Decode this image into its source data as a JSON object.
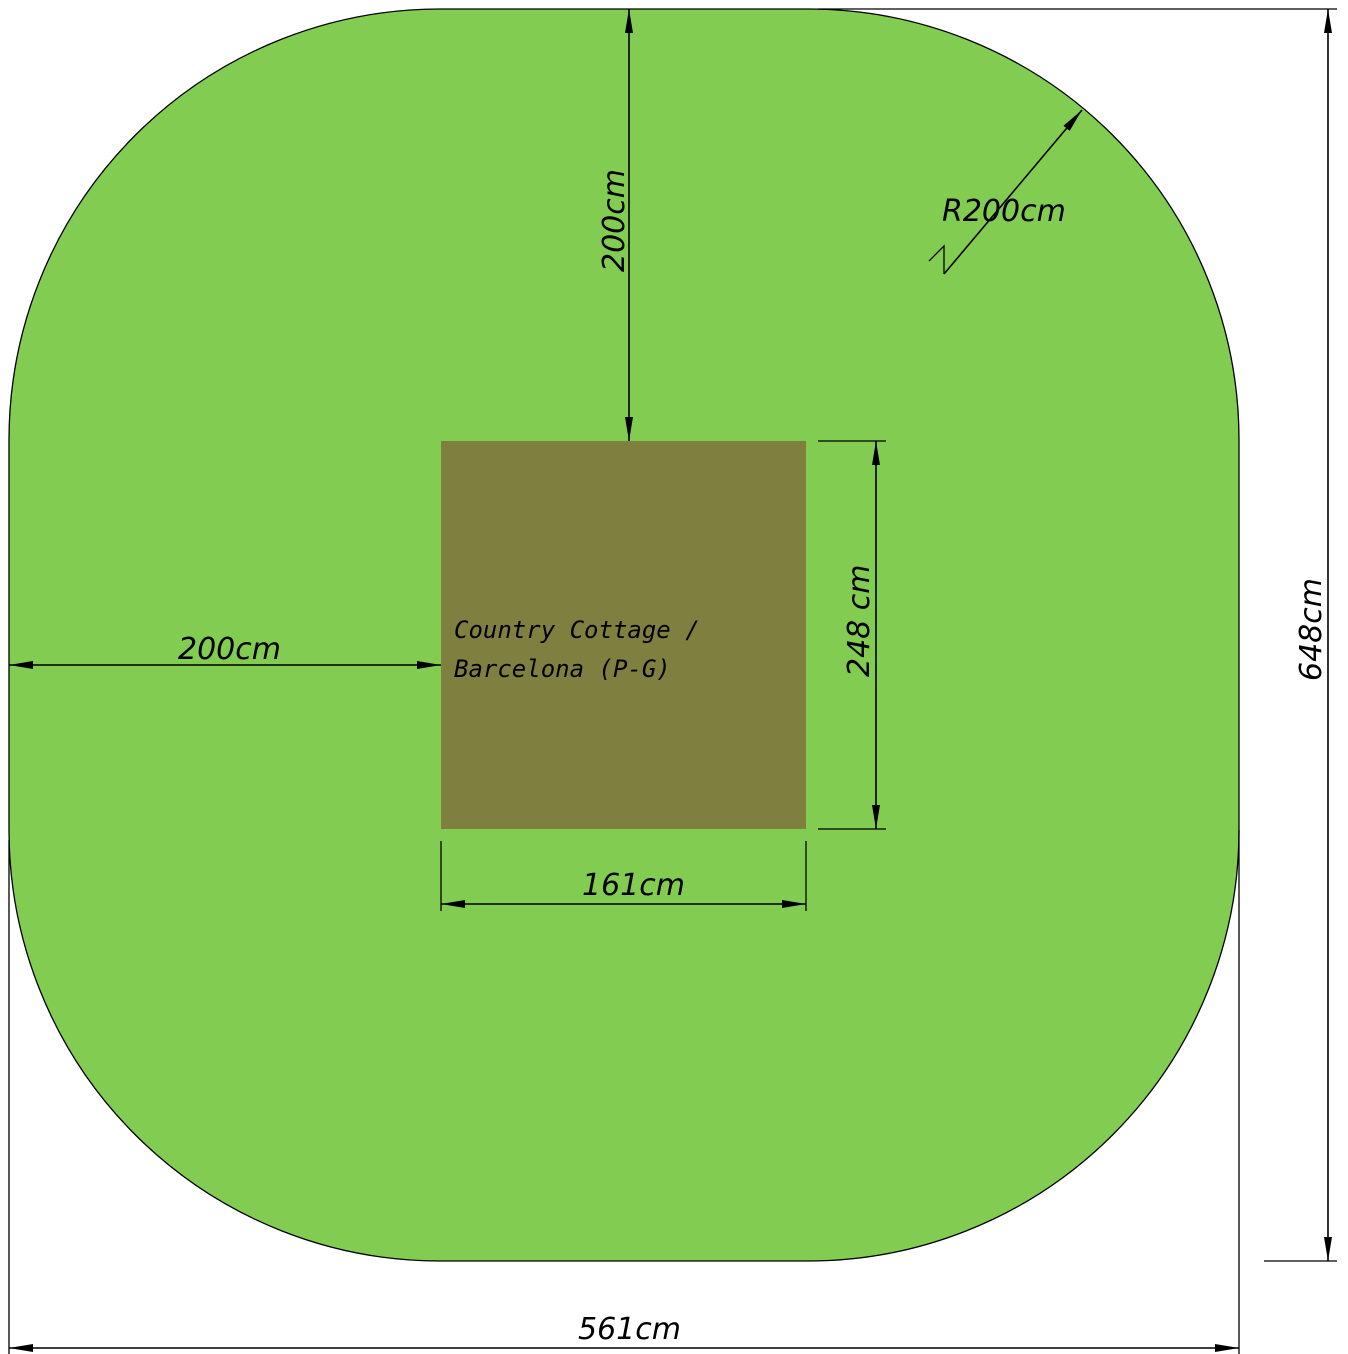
{
  "colors": {
    "lawn": "#82CC52",
    "building": "#7F8040",
    "line": "#000000"
  },
  "building_label": {
    "line1": "Country Cottage /",
    "line2": "Barcelona (P-G)"
  },
  "dimensions": {
    "top_offset": "200cm",
    "corner_radius": "R200cm",
    "left_offset": "200cm",
    "building_depth": "248 cm",
    "building_width": "161cm",
    "total_height": "648cm",
    "total_width": "561cm"
  }
}
